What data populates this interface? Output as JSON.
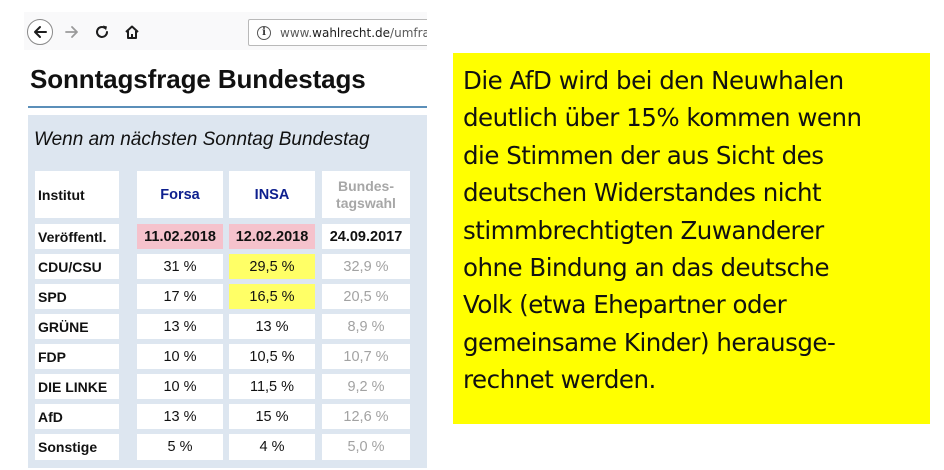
{
  "browser": {
    "url_prefix": "www.",
    "url_domain": "wahlrecht.de",
    "url_path": "/umfra"
  },
  "page": {
    "heading": "Sonntagsfrage Bundestags",
    "subtitle": "Wenn am nächsten Sonntag Bundestag"
  },
  "table": {
    "headers": {
      "institut": "Institut",
      "forsa": "Forsa",
      "insa": "INSA",
      "bundestagswahl_line1": "Bundes-",
      "bundestagswahl_line2": "tagswahl"
    },
    "published": {
      "label": "Veröffentl.",
      "forsa": "11.02.2018",
      "insa": "12.02.2018",
      "bundestagswahl": "24.09.2017"
    },
    "rows": [
      {
        "party": "CDU/CSU",
        "forsa": "31 %",
        "insa": "29,5 %",
        "bundestagswahl": "32,9 %"
      },
      {
        "party": "SPD",
        "forsa": "17 %",
        "insa": "16,5 %",
        "bundestagswahl": "20,5 %"
      },
      {
        "party": "GRÜNE",
        "forsa": "13 %",
        "insa": "13 %",
        "bundestagswahl": "8,9 %"
      },
      {
        "party": "FDP",
        "forsa": "10 %",
        "insa": "10,5 %",
        "bundestagswahl": "10,7 %"
      },
      {
        "party": "DIE LINKE",
        "forsa": "10 %",
        "insa": "11,5 %",
        "bundestagswahl": "9,2 %"
      },
      {
        "party": "AfD",
        "forsa": "13 %",
        "insa": "15 %",
        "bundestagswahl": "12,6 %"
      },
      {
        "party": "Sonstige",
        "forsa": "5 %",
        "insa": "4 %",
        "bundestagswahl": "5,0 %"
      }
    ]
  },
  "note": {
    "text": "Die AfD wird bei den Neuwhalen\ndeutlich über 15% kommen wenn\ndie Stimmen der aus Sicht  des\ndeutschen Widerstandes nicht\nstimmbrechtigten Zuwanderer\nohne Bindung an das deutsche\nVolk (etwa Ehepartner oder\ngemeinsame Kinder) herausge-\nrechnet werden."
  },
  "colors": {
    "note_background": "#ffff00",
    "highlight": "#ffff66",
    "date_highlight": "#f5c2cc",
    "institute_blue": "#0d1f8e",
    "rule_blue": "#5b8fb9",
    "table_background": "#dde6f0"
  },
  "icons": {
    "back": "arrow-left-icon",
    "forward": "arrow-right-icon",
    "reload": "reload-icon",
    "home": "home-icon",
    "info": "info-icon"
  }
}
